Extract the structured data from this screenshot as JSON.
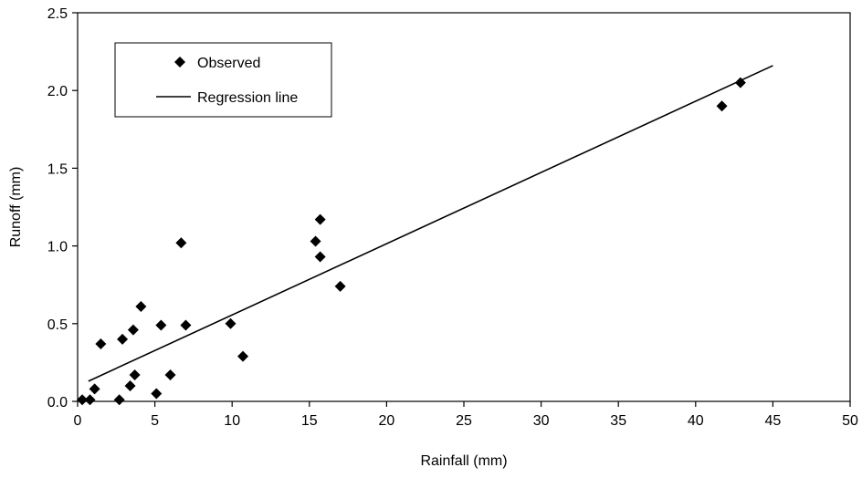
{
  "chart_data": {
    "type": "scatter",
    "title": "",
    "xlabel": "Rainfall (mm)",
    "ylabel": "Runoff (mm)",
    "xlim": [
      0,
      50
    ],
    "ylim": [
      0,
      2.5
    ],
    "xticks": [
      0,
      5,
      10,
      15,
      20,
      25,
      30,
      35,
      40,
      45,
      50
    ],
    "yticks": [
      0.0,
      0.5,
      1.0,
      1.5,
      2.0,
      2.5
    ],
    "xtick_labels": [
      "0",
      "5",
      "10",
      "15",
      "20",
      "25",
      "30",
      "35",
      "40",
      "45",
      "50"
    ],
    "ytick_labels": [
      "0.0",
      "0.5",
      "1.0",
      "1.5",
      "2.0",
      "2.5"
    ],
    "grid": false,
    "legend": {
      "placement": "top-left",
      "entries": [
        "Observed",
        "Regression line"
      ]
    },
    "series": [
      {
        "name": "Observed",
        "kind": "points",
        "points": [
          [
            0.3,
            0.01
          ],
          [
            0.8,
            0.01
          ],
          [
            1.1,
            0.08
          ],
          [
            1.5,
            0.37
          ],
          [
            2.7,
            0.01
          ],
          [
            2.9,
            0.4
          ],
          [
            3.4,
            0.1
          ],
          [
            3.6,
            0.46
          ],
          [
            3.7,
            0.17
          ],
          [
            4.1,
            0.61
          ],
          [
            5.1,
            0.05
          ],
          [
            5.4,
            0.49
          ],
          [
            6.0,
            0.17
          ],
          [
            6.7,
            1.02
          ],
          [
            7.0,
            0.49
          ],
          [
            9.9,
            0.5
          ],
          [
            10.7,
            0.29
          ],
          [
            15.4,
            1.03
          ],
          [
            15.7,
            1.17
          ],
          [
            15.7,
            0.93
          ],
          [
            17.0,
            0.74
          ],
          [
            41.7,
            1.9
          ],
          [
            42.9,
            2.05
          ]
        ]
      },
      {
        "name": "Regression line",
        "kind": "line",
        "points": [
          [
            0.7,
            0.13
          ],
          [
            45.0,
            2.16
          ]
        ]
      }
    ]
  }
}
